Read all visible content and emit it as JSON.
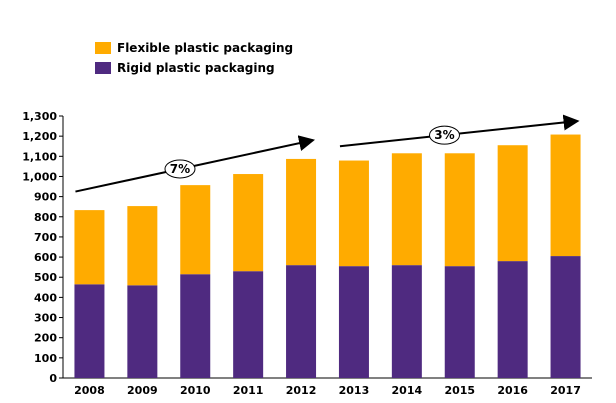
{
  "chart_data": {
    "type": "bar",
    "stacked": true,
    "title": "",
    "xlabel": "",
    "ylabel": "",
    "ylim": [
      0,
      1300
    ],
    "ytick_step": 100,
    "yticks": [
      "0",
      "100",
      "200",
      "300",
      "400",
      "500",
      "600",
      "700",
      "800",
      "900",
      "1,000",
      "1,100",
      "1,200",
      "1,300"
    ],
    "categories": [
      "2008",
      "2009",
      "2010",
      "2011",
      "2012",
      "2013",
      "2014",
      "2015",
      "2016",
      "2017"
    ],
    "series": [
      {
        "name": "Rigid plastic packaging",
        "color": "#4f2a80",
        "values": [
          465,
          460,
          515,
          530,
          560,
          555,
          560,
          555,
          580,
          605
        ]
      },
      {
        "name": "Flexible plastic packaging",
        "color": "#ffab00",
        "values": [
          368,
          393,
          442,
          482,
          527,
          524,
          555,
          560,
          575,
          603
        ]
      }
    ],
    "legend": {
      "position": "top-left",
      "items": [
        {
          "label": "Flexible plastic packaging",
          "color": "#ffab00"
        },
        {
          "label": "Rigid plastic packaging",
          "color": "#4f2a80"
        }
      ]
    },
    "annotations": [
      {
        "label": "7%",
        "from_year": "2008",
        "to_year": "2012",
        "from_value": 925,
        "to_value": 1180
      },
      {
        "label": "3%",
        "from_year": "2013",
        "to_year": "2017",
        "from_value": 1150,
        "to_value": 1275
      }
    ]
  }
}
